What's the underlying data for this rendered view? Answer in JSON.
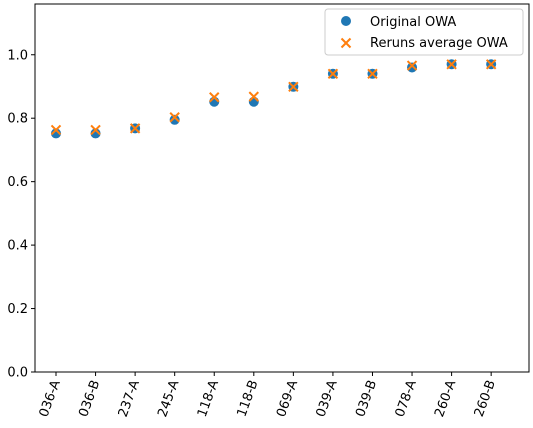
{
  "chart_data": {
    "type": "scatter",
    "categories": [
      "036-A",
      "036-B",
      "237-A",
      "245-A",
      "118-A",
      "118-B",
      "069-A",
      "039-A",
      "039-B",
      "078-A",
      "260-A",
      "260-B"
    ],
    "series": [
      {
        "name": "Original OWA",
        "marker": "circle",
        "color": "#1f77b4",
        "values": [
          0.752,
          0.752,
          0.768,
          0.795,
          0.852,
          0.852,
          0.899,
          0.94,
          0.94,
          0.96,
          0.97,
          0.97
        ]
      },
      {
        "name": "Reruns average OWA",
        "marker": "x",
        "color": "#ff7f0e",
        "values": [
          0.763,
          0.763,
          0.768,
          0.803,
          0.866,
          0.868,
          0.899,
          0.94,
          0.94,
          0.966,
          0.97,
          0.97
        ]
      }
    ],
    "ylim": [
      0.0,
      1.16
    ],
    "yticks": [
      0.0,
      0.2,
      0.4,
      0.6,
      0.8,
      1.0
    ],
    "ytick_labels": [
      "0.0",
      "0.2",
      "0.4",
      "0.6",
      "0.8",
      "1.0"
    ],
    "xtick_rotation": 70,
    "title": "",
    "xlabel": "",
    "ylabel": "",
    "grid": false,
    "legend_position": "top-right"
  }
}
